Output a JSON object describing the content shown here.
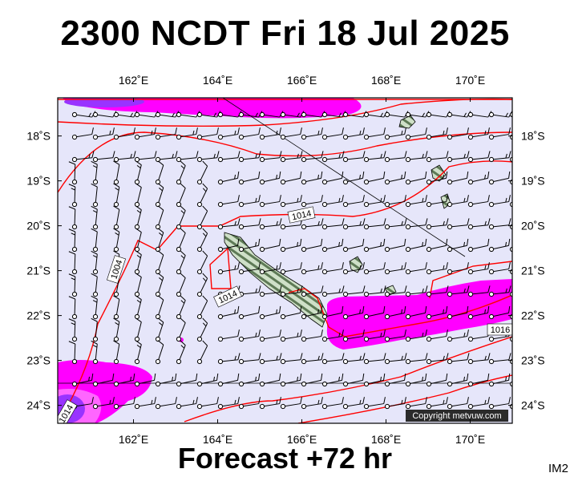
{
  "title": "2300 NCDT Fri 18 Jul 2025",
  "subtitle": "Forecast +72 hr",
  "image_tag": "IM2",
  "copyright": "Copyright metvuw.com",
  "map": {
    "lon_range": [
      160.2,
      171.0
    ],
    "lat_range": [
      -24.4,
      -17.15
    ],
    "lon_ticks": [
      162,
      164,
      166,
      168,
      170
    ],
    "lat_ticks": [
      -18,
      -19,
      -20,
      -21,
      -22,
      -23,
      -24
    ],
    "lon_tick_labels": [
      "162˚E",
      "164˚E",
      "166˚E",
      "168˚E",
      "170˚E"
    ],
    "lat_tick_labels": [
      "18˚S",
      "19˚S",
      "20˚S",
      "21˚S",
      "22˚S",
      "23˚S",
      "24˚S"
    ],
    "isobar_labels": [
      "1014",
      "1004",
      "1014",
      "1016",
      "1014"
    ],
    "colors": {
      "background": "#e6e6fa",
      "rain_magenta": "#ff00ff",
      "rain_pink": "#ff66ff",
      "rain_purple": "#9933ff",
      "isobar": "#ff0000",
      "land": "#cfe0c8",
      "land_stripe": "#5e7a56"
    }
  }
}
